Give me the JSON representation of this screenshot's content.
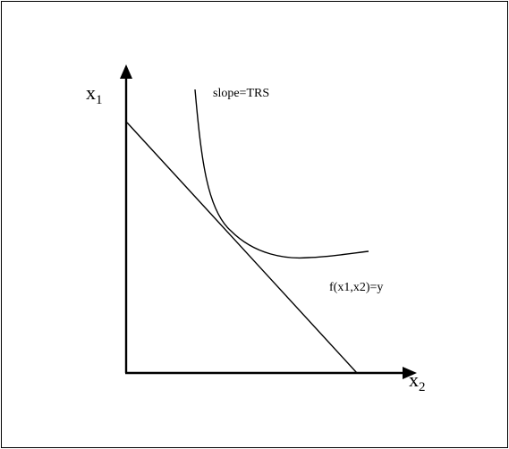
{
  "diagram": {
    "axis_y": {
      "base": "x",
      "sub": "1"
    },
    "axis_x": {
      "base": "x",
      "sub": "2"
    },
    "annotations": {
      "tangent_label": "slope=TRS",
      "isoquant_label": "f(x1,x2)=y"
    },
    "colors": {
      "stroke": "#000000",
      "frame": "#000000",
      "background": "#ffffff"
    }
  }
}
